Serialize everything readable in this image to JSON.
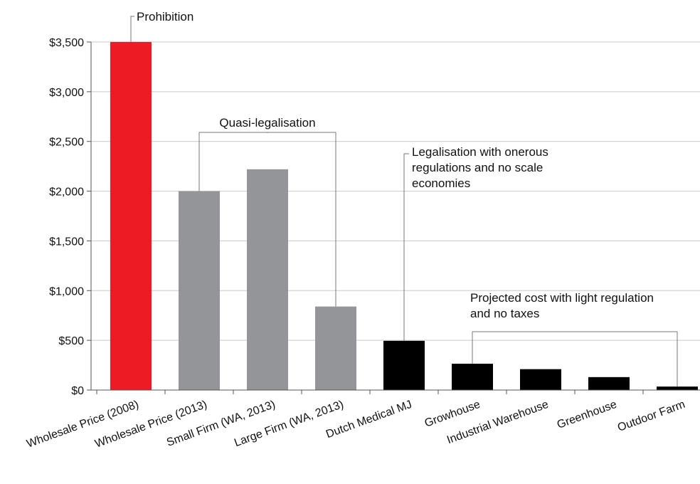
{
  "chart_data": {
    "type": "bar",
    "title": "",
    "xlabel": "",
    "ylabel": "",
    "ylim": [
      0,
      3500
    ],
    "y_ticks": [
      0,
      500,
      1000,
      1500,
      2000,
      2500,
      3000,
      3500
    ],
    "y_tick_labels": [
      "$0",
      "$500",
      "$1,000",
      "$1,500",
      "$2,000",
      "$2,500",
      "$3,000",
      "$3,500"
    ],
    "grid": true,
    "categories": [
      "Wholesale Price (2008)",
      "Wholesale Price (2013)",
      "Small Firm (WA, 2013)",
      "Large Firm (WA, 2013)",
      "Dutch Medical MJ",
      "Growhouse",
      "Industrial Warehouse",
      "Greenhouse",
      "Outdoor Farm"
    ],
    "values": [
      3500,
      2000,
      2220,
      840,
      495,
      265,
      210,
      130,
      35
    ],
    "bar_colors": [
      "#ed1c24",
      "#939598",
      "#939598",
      "#939598",
      "#000000",
      "#000000",
      "#000000",
      "#000000",
      "#000000"
    ],
    "annotations": [
      {
        "lines": [
          "Prohibition"
        ],
        "categories": [
          0
        ]
      },
      {
        "lines": [
          "Quasi-legalisation"
        ],
        "categories": [
          1,
          3
        ]
      },
      {
        "lines": [
          "Legalisation with onerous",
          "regulations and no scale",
          "economies"
        ],
        "categories": [
          4
        ]
      },
      {
        "lines": [
          "Projected cost with light regulation",
          "and no taxes"
        ],
        "categories": [
          5,
          8
        ]
      }
    ]
  }
}
